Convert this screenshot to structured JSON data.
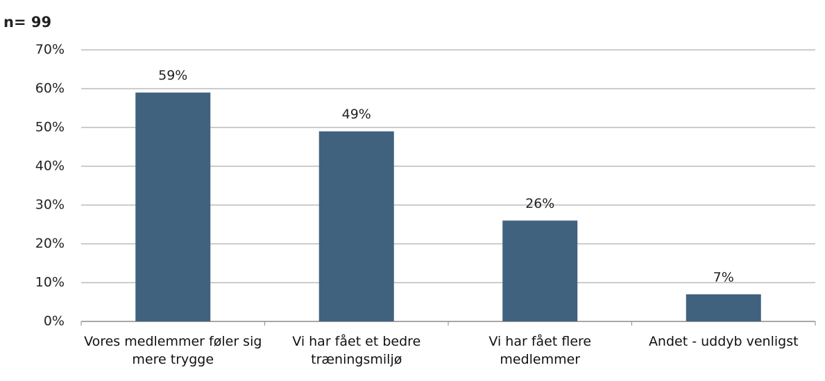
{
  "chart_data": {
    "type": "bar",
    "subtitle": "n= 99",
    "categories": [
      "Vores medlemmer føler sig mere trygge",
      "Vi har fået et bedre træningsmiljø",
      "Vi har fået flere medlemmer",
      "Andet - uddyb venligst"
    ],
    "values": [
      59,
      49,
      26,
      7
    ],
    "value_labels": [
      "59%",
      "49%",
      "26%",
      "7%"
    ],
    "color": "#41627f",
    "ylim": [
      0,
      70
    ],
    "yticks": [
      {
        "value": 0,
        "label": "0%"
      },
      {
        "value": 10,
        "label": "10%"
      },
      {
        "value": 20,
        "label": "20%"
      },
      {
        "value": 30,
        "label": "30%"
      },
      {
        "value": 40,
        "label": "40%"
      },
      {
        "value": 50,
        "label": "50%"
      },
      {
        "value": 60,
        "label": "60%"
      },
      {
        "value": 70,
        "label": "70%"
      }
    ],
    "grid": true
  }
}
